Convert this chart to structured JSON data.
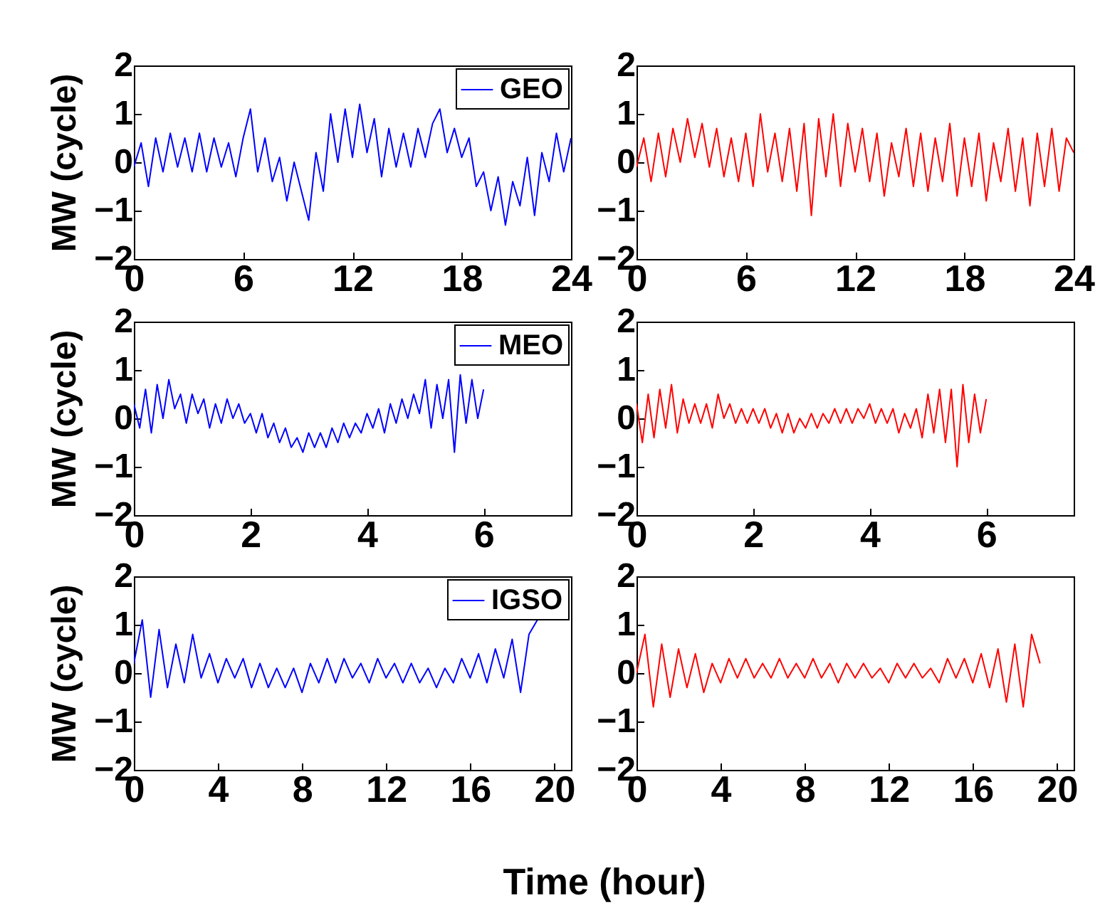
{
  "chart_data": [
    {
      "type": "line",
      "ylabel": "MW (cycle)",
      "xlim": [
        0,
        24
      ],
      "xticks": [
        0,
        6,
        12,
        18,
        24
      ],
      "ylim": [
        -2,
        2
      ],
      "yticks": [
        -2,
        -1,
        0,
        1,
        2
      ],
      "legend": "top right",
      "x": [
        0,
        0.4,
        0.8,
        1.2,
        1.6,
        2.0,
        2.4,
        2.8,
        3.2,
        3.6,
        4.0,
        4.4,
        4.8,
        5.2,
        5.6,
        6.0,
        6.4,
        6.8,
        7.2,
        7.6,
        8.0,
        8.4,
        8.8,
        9.2,
        9.6,
        10.0,
        10.4,
        10.8,
        11.2,
        11.6,
        12.0,
        12.4,
        12.8,
        13.2,
        13.6,
        14.0,
        14.4,
        14.8,
        15.2,
        15.6,
        16.0,
        16.4,
        16.8,
        17.2,
        17.6,
        18.0,
        18.4,
        18.8,
        19.2,
        19.6,
        20.0,
        20.4,
        20.8,
        21.2,
        21.6,
        22.0,
        22.4,
        22.8,
        23.2,
        23.6,
        24
      ],
      "series": [
        {
          "name": "GEO",
          "color": "#0000ff",
          "values": [
            -0.1,
            0.4,
            -0.5,
            0.5,
            -0.2,
            0.6,
            -0.1,
            0.5,
            -0.2,
            0.6,
            -0.2,
            0.5,
            -0.1,
            0.4,
            -0.3,
            0.5,
            1.1,
            -0.2,
            0.5,
            -0.4,
            0.1,
            -0.8,
            0.0,
            -0.6,
            -1.2,
            0.2,
            -0.6,
            1.0,
            0.0,
            1.1,
            0.1,
            1.2,
            0.2,
            0.9,
            -0.3,
            0.7,
            -0.1,
            0.6,
            -0.1,
            0.7,
            0.1,
            0.8,
            1.1,
            0.2,
            0.7,
            0.1,
            0.5,
            -0.5,
            -0.2,
            -1.0,
            -0.3,
            -1.3,
            -0.4,
            -0.9,
            0.1,
            -1.1,
            0.2,
            -0.4,
            0.6,
            -0.2,
            0.5
          ]
        }
      ]
    },
    {
      "type": "line",
      "xlim": [
        0,
        24
      ],
      "xticks": [
        0,
        6,
        12,
        18,
        24
      ],
      "ylim": [
        -2,
        2
      ],
      "yticks": [
        -2,
        -1,
        0,
        1,
        2
      ],
      "x": [
        0,
        0.4,
        0.8,
        1.2,
        1.6,
        2.0,
        2.4,
        2.8,
        3.2,
        3.6,
        4.0,
        4.4,
        4.8,
        5.2,
        5.6,
        6.0,
        6.4,
        6.8,
        7.2,
        7.6,
        8.0,
        8.4,
        8.8,
        9.2,
        9.6,
        10.0,
        10.4,
        10.8,
        11.2,
        11.6,
        12.0,
        12.4,
        12.8,
        13.2,
        13.6,
        14.0,
        14.4,
        14.8,
        15.2,
        15.6,
        16.0,
        16.4,
        16.8,
        17.2,
        17.6,
        18.0,
        18.4,
        18.8,
        19.2,
        19.6,
        20.0,
        20.4,
        20.8,
        21.2,
        21.6,
        22.0,
        22.4,
        22.8,
        23.2,
        23.6,
        24
      ],
      "series": [
        {
          "color": "#ff0000",
          "values": [
            -0.1,
            0.5,
            -0.4,
            0.6,
            -0.3,
            0.7,
            0.0,
            0.9,
            0.1,
            0.8,
            -0.1,
            0.7,
            -0.3,
            0.5,
            -0.4,
            0.6,
            -0.5,
            1.0,
            -0.2,
            0.6,
            -0.4,
            0.7,
            -0.6,
            0.8,
            -1.1,
            0.9,
            -0.3,
            1.0,
            -0.5,
            0.8,
            -0.2,
            0.7,
            -0.4,
            0.6,
            -0.7,
            0.4,
            -0.3,
            0.7,
            -0.5,
            0.6,
            -0.6,
            0.5,
            -0.4,
            0.8,
            -0.7,
            0.5,
            -0.5,
            0.6,
            -0.8,
            0.4,
            -0.4,
            0.7,
            -0.6,
            0.5,
            -0.9,
            0.6,
            -0.5,
            0.7,
            -0.6,
            0.5,
            0.2
          ]
        }
      ]
    },
    {
      "type": "line",
      "ylabel": "MW (cycle)",
      "xlim": [
        0,
        7.5
      ],
      "xticks": [
        0,
        2,
        4,
        6
      ],
      "ylim": [
        -2,
        2
      ],
      "yticks": [
        -2,
        -1,
        0,
        1,
        2
      ],
      "legend": "top right",
      "x": [
        0,
        0.1,
        0.2,
        0.3,
        0.4,
        0.5,
        0.6,
        0.7,
        0.8,
        0.9,
        1.0,
        1.1,
        1.2,
        1.3,
        1.4,
        1.5,
        1.6,
        1.7,
        1.8,
        1.9,
        2.0,
        2.1,
        2.2,
        2.3,
        2.4,
        2.5,
        2.6,
        2.7,
        2.8,
        2.9,
        3.0,
        3.1,
        3.2,
        3.3,
        3.4,
        3.5,
        3.6,
        3.7,
        3.8,
        3.9,
        4.0,
        4.1,
        4.2,
        4.3,
        4.4,
        4.5,
        4.6,
        4.7,
        4.8,
        4.9,
        5.0,
        5.1,
        5.2,
        5.3,
        5.4,
        5.5,
        5.6,
        5.7,
        5.8,
        5.9,
        6.0
      ],
      "series": [
        {
          "name": "MEO",
          "color": "#0000ff",
          "values": [
            0.3,
            -0.2,
            0.6,
            -0.3,
            0.7,
            0.0,
            0.8,
            0.2,
            0.5,
            -0.1,
            0.5,
            0.1,
            0.4,
            -0.2,
            0.3,
            -0.1,
            0.4,
            0.0,
            0.3,
            -0.1,
            0.1,
            -0.3,
            0.1,
            -0.4,
            -0.1,
            -0.5,
            -0.2,
            -0.6,
            -0.4,
            -0.7,
            -0.3,
            -0.6,
            -0.3,
            -0.6,
            -0.2,
            -0.5,
            -0.1,
            -0.4,
            -0.1,
            -0.3,
            0.1,
            -0.2,
            0.2,
            -0.3,
            0.3,
            -0.1,
            0.4,
            0.0,
            0.5,
            0.1,
            0.8,
            -0.2,
            0.7,
            0.0,
            0.8,
            -0.7,
            0.9,
            -0.1,
            0.8,
            0.0,
            0.6
          ]
        }
      ]
    },
    {
      "type": "line",
      "xlim": [
        0,
        7.5
      ],
      "xticks": [
        0,
        2,
        4,
        6
      ],
      "ylim": [
        -2,
        2
      ],
      "yticks": [
        -2,
        -1,
        0,
        1,
        2
      ],
      "x": [
        0,
        0.1,
        0.2,
        0.3,
        0.4,
        0.5,
        0.6,
        0.7,
        0.8,
        0.9,
        1.0,
        1.1,
        1.2,
        1.3,
        1.4,
        1.5,
        1.6,
        1.7,
        1.8,
        1.9,
        2.0,
        2.1,
        2.2,
        2.3,
        2.4,
        2.5,
        2.6,
        2.7,
        2.8,
        2.9,
        3.0,
        3.1,
        3.2,
        3.3,
        3.4,
        3.5,
        3.6,
        3.7,
        3.8,
        3.9,
        4.0,
        4.1,
        4.2,
        4.3,
        4.4,
        4.5,
        4.6,
        4.7,
        4.8,
        4.9,
        5.0,
        5.1,
        5.2,
        5.3,
        5.4,
        5.5,
        5.6,
        5.7,
        5.8,
        5.9,
        6.0
      ],
      "series": [
        {
          "color": "#ff0000",
          "values": [
            0.3,
            -0.5,
            0.5,
            -0.4,
            0.6,
            -0.2,
            0.7,
            -0.3,
            0.4,
            -0.1,
            0.3,
            -0.1,
            0.3,
            -0.2,
            0.5,
            0.0,
            0.3,
            -0.1,
            0.2,
            -0.1,
            0.2,
            -0.1,
            0.2,
            -0.2,
            0.1,
            -0.3,
            0.1,
            -0.3,
            0.0,
            -0.2,
            0.1,
            -0.2,
            0.1,
            -0.1,
            0.2,
            -0.1,
            0.2,
            -0.1,
            0.2,
            0.0,
            0.3,
            -0.1,
            0.2,
            -0.1,
            0.2,
            -0.3,
            0.1,
            -0.2,
            0.2,
            -0.4,
            0.5,
            -0.3,
            0.6,
            -0.5,
            0.6,
            -1.0,
            0.7,
            -0.5,
            0.5,
            -0.3,
            0.4
          ]
        }
      ]
    },
    {
      "type": "line",
      "ylabel": "MW (cycle)",
      "xlabel": "Time (hour)",
      "xlim": [
        0,
        20.8
      ],
      "xticks": [
        0,
        4,
        8,
        12,
        16,
        20
      ],
      "ylim": [
        -2,
        2
      ],
      "yticks": [
        -2,
        -1,
        0,
        1,
        2
      ],
      "legend": "top right",
      "x": [
        0,
        0.4,
        0.8,
        1.2,
        1.6,
        2.0,
        2.4,
        2.8,
        3.2,
        3.6,
        4.0,
        4.4,
        4.8,
        5.2,
        5.6,
        6.0,
        6.4,
        6.8,
        7.2,
        7.6,
        8.0,
        8.4,
        8.8,
        9.2,
        9.6,
        10.0,
        10.4,
        10.8,
        11.2,
        11.6,
        12.0,
        12.4,
        12.8,
        13.2,
        13.6,
        14.0,
        14.4,
        14.8,
        15.2,
        15.6,
        16.0,
        16.4,
        16.8,
        17.2,
        17.6,
        18.0,
        18.4,
        18.8,
        19.2
      ],
      "series": [
        {
          "name": "IGSO",
          "color": "#0000ff",
          "values": [
            0.2,
            1.1,
            -0.5,
            0.9,
            -0.3,
            0.6,
            -0.2,
            0.8,
            -0.1,
            0.4,
            -0.2,
            0.3,
            -0.1,
            0.3,
            -0.3,
            0.2,
            -0.3,
            0.1,
            -0.3,
            0.1,
            -0.4,
            0.2,
            -0.2,
            0.3,
            -0.2,
            0.3,
            -0.1,
            0.2,
            -0.2,
            0.3,
            -0.1,
            0.2,
            -0.2,
            0.2,
            -0.2,
            0.1,
            -0.3,
            0.1,
            -0.2,
            0.3,
            -0.1,
            0.4,
            -0.2,
            0.5,
            -0.1,
            0.7,
            -0.4,
            0.8,
            1.1
          ]
        }
      ]
    },
    {
      "type": "line",
      "xlim": [
        0,
        20.8
      ],
      "xticks": [
        0,
        4,
        8,
        12,
        16,
        20
      ],
      "ylim": [
        -2,
        2
      ],
      "yticks": [
        -2,
        -1,
        0,
        1,
        2
      ],
      "x": [
        0,
        0.4,
        0.8,
        1.2,
        1.6,
        2.0,
        2.4,
        2.8,
        3.2,
        3.6,
        4.0,
        4.4,
        4.8,
        5.2,
        5.6,
        6.0,
        6.4,
        6.8,
        7.2,
        7.6,
        8.0,
        8.4,
        8.8,
        9.2,
        9.6,
        10.0,
        10.4,
        10.8,
        11.2,
        11.6,
        12.0,
        12.4,
        12.8,
        13.2,
        13.6,
        14.0,
        14.4,
        14.8,
        15.2,
        15.6,
        16.0,
        16.4,
        16.8,
        17.2,
        17.6,
        18.0,
        18.4,
        18.8,
        19.2
      ],
      "series": [
        {
          "color": "#ff0000",
          "values": [
            0.0,
            0.8,
            -0.7,
            0.6,
            -0.5,
            0.5,
            -0.3,
            0.4,
            -0.4,
            0.2,
            -0.2,
            0.3,
            -0.1,
            0.3,
            -0.1,
            0.2,
            -0.1,
            0.3,
            -0.1,
            0.2,
            -0.1,
            0.3,
            -0.1,
            0.2,
            -0.2,
            0.2,
            -0.1,
            0.2,
            -0.1,
            0.1,
            -0.2,
            0.2,
            -0.1,
            0.2,
            -0.1,
            0.1,
            -0.2,
            0.3,
            -0.1,
            0.3,
            -0.2,
            0.4,
            -0.3,
            0.5,
            -0.6,
            0.6,
            -0.7,
            0.8,
            0.2
          ]
        }
      ]
    }
  ]
}
